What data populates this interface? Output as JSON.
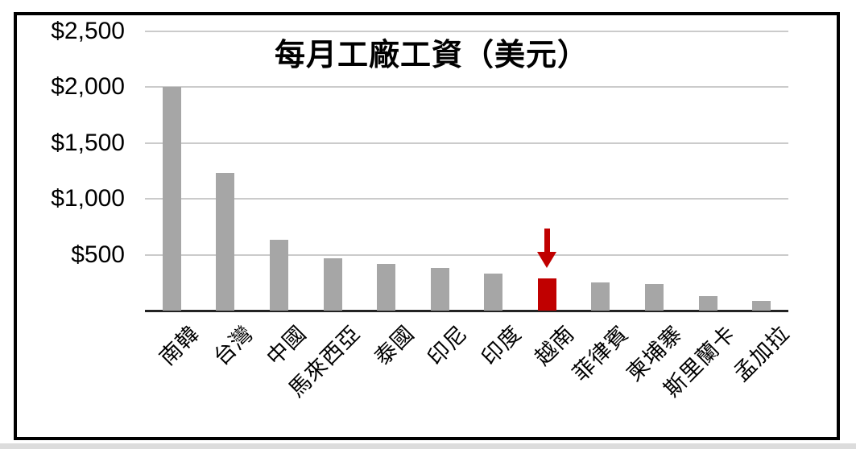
{
  "chart_data": {
    "type": "bar",
    "title": "每月工廠工資（美元）",
    "categories": [
      "南韓",
      "台灣",
      "中國",
      "馬來西亞",
      "泰國",
      "印尼",
      "印度",
      "越南",
      "菲律賓",
      "柬埔寨",
      "斯里蘭卡",
      "孟加拉"
    ],
    "values": [
      2000,
      1230,
      635,
      465,
      420,
      380,
      330,
      290,
      255,
      235,
      130,
      90
    ],
    "xlabel": "",
    "ylabel": "",
    "ylim": [
      0,
      2500
    ],
    "yticks": [
      2500,
      2000,
      1500,
      1000,
      500
    ],
    "ytick_labels": [
      "$2,500",
      "$2,000",
      "$1,500",
      "$1,000",
      "$500"
    ],
    "grid": true,
    "legend_position": "none",
    "highlight": {
      "category": "越南",
      "index": 7,
      "annotation": "red-down-arrow"
    },
    "colors": {
      "bar": "#A6A6A6",
      "highlight_bar": "#C00000",
      "arrow": "#C00000",
      "gridline": "#CBCBCB",
      "axis_line": "#232323",
      "frame_border": "#000000",
      "background": "#FFFFFF",
      "text": "#000000"
    }
  }
}
